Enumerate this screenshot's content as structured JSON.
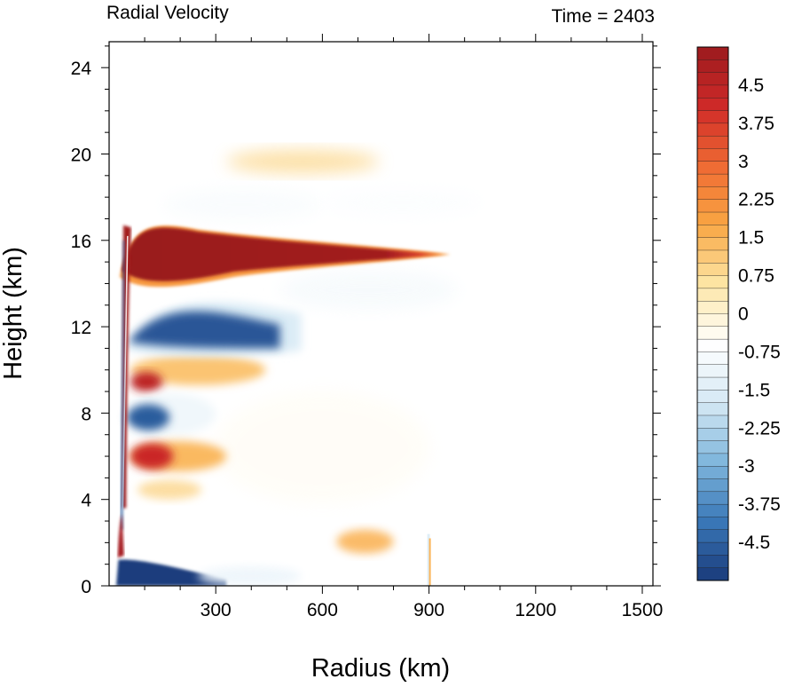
{
  "chart_data": {
    "type": "heatmap",
    "title_left": "Radial Velocity",
    "title_right": "Time = 2403",
    "xlabel": "Radius (km)",
    "ylabel": "Height (km)",
    "xlim": [
      0,
      1530
    ],
    "ylim": [
      0,
      25.2
    ],
    "xticks": [
      300,
      600,
      900,
      1200,
      1500
    ],
    "yticks": [
      0,
      4,
      8,
      12,
      16,
      20,
      24
    ],
    "colorbar": {
      "min": -5.25,
      "max": 5.25,
      "step": 0.25,
      "labels": [
        4.5,
        3.75,
        3,
        2.25,
        1.5,
        0.75,
        0,
        -0.75,
        -1.5,
        -2.25,
        -3,
        -3.75,
        -4.5
      ],
      "label_texts": [
        "4.5",
        "3.75",
        "3",
        "2.25",
        "1.5",
        "0.75",
        "0",
        "-0.75",
        "-1.5",
        "-2.25",
        "-3",
        "-3.75",
        "-4.5"
      ],
      "stops": [
        "#9b1a1e",
        "#cf2a28",
        "#ef6a33",
        "#f9a643",
        "#fde6a6",
        "#ffffff",
        "#d6e9f5",
        "#7fb6dc",
        "#3a78b8",
        "#1a3a7a"
      ]
    },
    "features": [
      {
        "name": "upper-level outflow",
        "sign": "positive",
        "r": [
          40,
          960
        ],
        "z": [
          13.9,
          16.8
        ],
        "peak": 5.25
      },
      {
        "name": "upper inflow below outflow",
        "sign": "negative",
        "r": [
          50,
          540
        ],
        "z": [
          10.6,
          13.8
        ],
        "peak": -5.0
      },
      {
        "name": "weak inflow above outflow",
        "sign": "negative",
        "r": [
          150,
          1050
        ],
        "z": [
          17.0,
          18.6
        ],
        "peak": -0.9
      },
      {
        "name": "weak inflow under outflow tail",
        "sign": "negative",
        "r": [
          480,
          1000
        ],
        "z": [
          12.8,
          14.6
        ],
        "peak": -1.0
      },
      {
        "name": "mid-level outflow band",
        "sign": "positive",
        "r": [
          50,
          440
        ],
        "z": [
          9.2,
          10.7
        ],
        "peak": 3.5
      },
      {
        "name": "mid-level inflow band",
        "sign": "negative",
        "r": [
          40,
          280
        ],
        "z": [
          7.1,
          8.8
        ],
        "peak": -4.5
      },
      {
        "name": "lower outflow band",
        "sign": "positive",
        "r": [
          40,
          330
        ],
        "z": [
          5.2,
          6.8
        ],
        "peak": 4.0
      },
      {
        "name": "boundary layer outflow",
        "sign": "positive",
        "r": [
          20,
          70
        ],
        "z": [
          1.2,
          3.2
        ],
        "peak": 5.0
      },
      {
        "name": "boundary layer inflow",
        "sign": "negative",
        "r": [
          20,
          520
        ],
        "z": [
          0,
          1.4
        ],
        "peak": -5.25
      },
      {
        "name": "weak upper outflow patches",
        "sign": "positive",
        "r": [
          300,
          750
        ],
        "z": [
          19.0,
          20.4
        ],
        "peak": 0.9
      },
      {
        "name": "near-surface patch",
        "sign": "positive",
        "r": [
          640,
          800
        ],
        "z": [
          1.4,
          2.6
        ],
        "peak": 1.6
      },
      {
        "name": "eyewall",
        "sign": "mixed",
        "r": [
          20,
          55
        ],
        "z": [
          0,
          16.8
        ],
        "peak": 0
      }
    ]
  }
}
